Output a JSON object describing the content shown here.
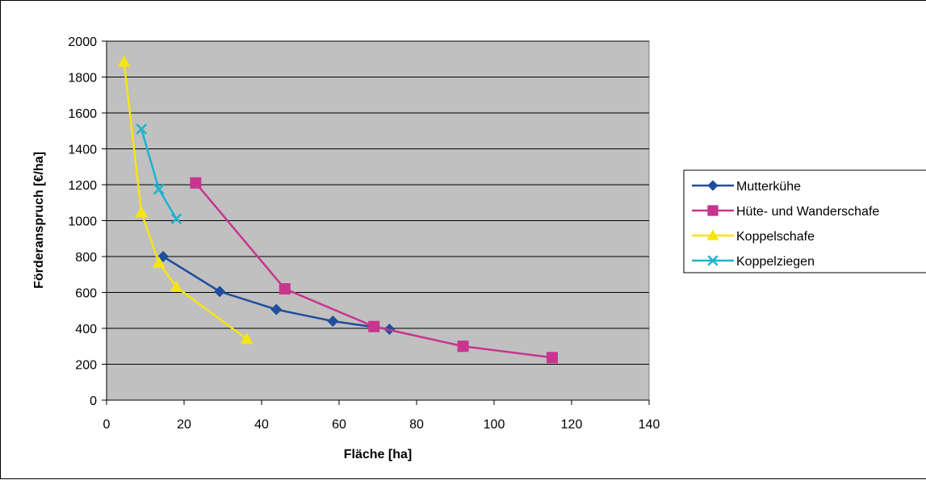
{
  "chart_data": {
    "type": "line",
    "title": "",
    "xlabel": "Fläche [ha]",
    "ylabel": "Förderanspruch [€/ha]",
    "xlim": [
      0,
      140
    ],
    "ylim": [
      0,
      2000
    ],
    "x_ticks": [
      "0",
      "20",
      "40",
      "60",
      "80",
      "100",
      "120",
      "140"
    ],
    "y_ticks": [
      "0",
      "200",
      "400",
      "600",
      "800",
      "1000",
      "1200",
      "1400",
      "1600",
      "1800",
      "2000"
    ],
    "grid": "horizontal",
    "legend_position": "right",
    "plot_background": "#c0c0c0",
    "series": [
      {
        "name": "Mutterkühe",
        "color": "#1f4e9c",
        "marker": "diamond",
        "x": [
          14.6,
          29.2,
          43.8,
          58.4,
          73
        ],
        "y": [
          800,
          605,
          505,
          440,
          395
        ]
      },
      {
        "name": "Hüte- und Wanderschafe",
        "color": "#c8358f",
        "marker": "square",
        "x": [
          23,
          46,
          69,
          92,
          115
        ],
        "y": [
          1210,
          620,
          410,
          300,
          237
        ]
      },
      {
        "name": "Koppelschafe",
        "color": "#f5e514",
        "marker": "triangle",
        "x": [
          4.5,
          9,
          13.5,
          18,
          36.2
        ],
        "y": [
          1885,
          1045,
          765,
          630,
          340
        ]
      },
      {
        "name": "Koppelziegen",
        "color": "#1ab4cf",
        "marker": "x",
        "x": [
          9,
          13.5,
          18
        ],
        "y": [
          1510,
          1175,
          1010
        ]
      }
    ]
  }
}
